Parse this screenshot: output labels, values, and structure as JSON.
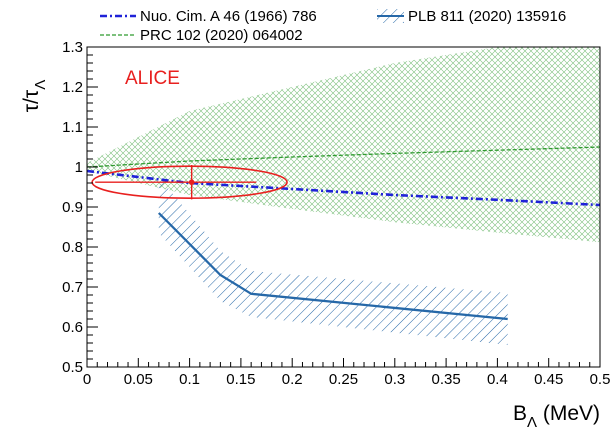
{
  "chart_data": {
    "type": "line",
    "title": "",
    "xlabel": {
      "main": "B",
      "sub": "Λ",
      "unit": " (MeV)"
    },
    "ylabel": {
      "main": "τ/τ",
      "sub": "Λ"
    },
    "xlim": [
      0,
      0.5
    ],
    "ylim": [
      0.5,
      1.3
    ],
    "x_ticks": [
      0,
      0.05,
      0.1,
      0.15,
      0.2,
      0.25,
      0.3,
      0.35,
      0.4,
      0.45,
      0.5
    ],
    "x_tick_labels": [
      "0",
      "0.05",
      "0.1",
      "0.15",
      "0.2",
      "0.25",
      "0.3",
      "0.35",
      "0.4",
      "0.45",
      "0.5"
    ],
    "y_ticks": [
      0.5,
      0.6,
      0.7,
      0.8,
      0.9,
      1.0,
      1.1,
      1.2,
      1.3
    ],
    "y_tick_labels": [
      "0.5",
      "0.6",
      "0.7",
      "0.8",
      "0.9",
      "1",
      "1.1",
      "1.2",
      "1.3"
    ],
    "grid": false,
    "legend_placement": "top",
    "annotation": {
      "text": "ALICE",
      "color": "#e8201f"
    },
    "measurement": {
      "x": 0.102,
      "y": 0.962,
      "x_err": [
        0.094,
        0.063
      ],
      "y_err": [
        0.043,
        0.043
      ],
      "ellipse_center": [
        0.1,
        0.962
      ],
      "ellipse_radii": [
        0.095,
        0.04
      ],
      "color": "#e8201f"
    },
    "series": [
      {
        "name": "Nuo. Cim. A 46 (1966) 786",
        "style": "dash-dot",
        "color": "#1f22d8",
        "x": [
          0,
          0.1,
          0.2,
          0.3,
          0.4,
          0.5
        ],
        "y": [
          0.99,
          0.96,
          0.945,
          0.93,
          0.918,
          0.905
        ]
      },
      {
        "name": "PLB 811 (2020) 135916",
        "style": "solid-with-band",
        "color": "#2668a8",
        "x": [
          0.07,
          0.13,
          0.16,
          0.41
        ],
        "y": [
          0.885,
          0.73,
          0.683,
          0.62
        ],
        "band_upper": [
          0.975,
          0.79,
          0.74,
          0.685
        ],
        "band_lower": [
          0.835,
          0.665,
          0.625,
          0.555
        ]
      },
      {
        "name": "PRC 102 (2020) 064002",
        "style": "dashed-with-band",
        "color": "#2f9a2f",
        "x": [
          0,
          0.1,
          0.2,
          0.3,
          0.4,
          0.5
        ],
        "y": [
          1.0,
          1.015,
          1.025,
          1.034,
          1.042,
          1.05
        ],
        "band_upper": [
          1.01,
          1.14,
          1.2,
          1.26,
          1.3,
          1.3
        ],
        "band_lower": [
          0.99,
          0.93,
          0.895,
          0.862,
          0.836,
          0.812
        ]
      }
    ]
  }
}
